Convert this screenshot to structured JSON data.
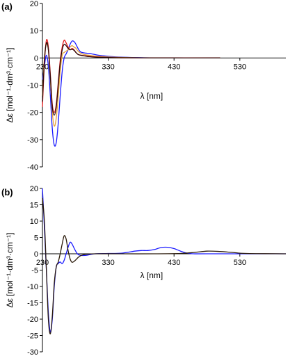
{
  "chart_data": [
    {
      "panel_label": "(a)",
      "type": "line",
      "xlabel": "λ [nm]",
      "ylabel": "Δε [mol⁻¹·dm³·cm⁻¹]",
      "xlim": [
        230,
        600
      ],
      "ylim": [
        -40,
        20
      ],
      "xticks": [
        230,
        330,
        430,
        530
      ],
      "yticks": [
        -40,
        -30,
        -20,
        -10,
        0,
        10,
        20
      ],
      "grid": false,
      "series": [
        {
          "color": "#1a1aff",
          "points": [
            [
              230,
              -8
            ],
            [
              233,
              -3
            ],
            [
              236,
              1
            ],
            [
              239,
              -3
            ],
            [
              242,
              -14
            ],
            [
              245,
              -26
            ],
            [
              248,
              -32
            ],
            [
              251,
              -31
            ],
            [
              254,
              -24
            ],
            [
              257,
              -14
            ],
            [
              260,
              -5
            ],
            [
              263,
              0
            ],
            [
              266,
              1.5
            ],
            [
              269,
              3
            ],
            [
              272,
              5
            ],
            [
              275,
              6.2
            ],
            [
              278,
              6
            ],
            [
              281,
              5
            ],
            [
              284,
              3.5
            ],
            [
              288,
              2.2
            ],
            [
              295,
              1.8
            ],
            [
              305,
              1.5
            ],
            [
              315,
              1
            ],
            [
              330,
              0.6
            ],
            [
              350,
              0.3
            ],
            [
              380,
              0.1
            ],
            [
              420,
              0
            ],
            [
              500,
              0
            ]
          ]
        },
        {
          "color": "#e8a33a",
          "points": [
            [
              230,
              -14
            ],
            [
              233,
              0
            ],
            [
              236,
              5
            ],
            [
              239,
              3
            ],
            [
              242,
              -8
            ],
            [
              245,
              -20
            ],
            [
              248,
              -25
            ],
            [
              251,
              -22
            ],
            [
              254,
              -14
            ],
            [
              257,
              -5
            ],
            [
              260,
              1
            ],
            [
              263,
              2
            ],
            [
              266,
              2.5
            ],
            [
              269,
              3
            ],
            [
              272,
              4
            ],
            [
              275,
              4.5
            ],
            [
              278,
              4
            ],
            [
              281,
              3.5
            ],
            [
              284,
              2.5
            ],
            [
              290,
              1.5
            ],
            [
              300,
              1
            ],
            [
              320,
              0.5
            ],
            [
              350,
              0.2
            ],
            [
              400,
              0
            ],
            [
              500,
              0
            ]
          ]
        },
        {
          "color": "#e31a1c",
          "points": [
            [
              230,
              -18
            ],
            [
              233,
              -2
            ],
            [
              236,
              6.5
            ],
            [
              239,
              4
            ],
            [
              242,
              -6
            ],
            [
              245,
              -17
            ],
            [
              248,
              -20
            ],
            [
              251,
              -17
            ],
            [
              254,
              -9
            ],
            [
              257,
              -1
            ],
            [
              260,
              4
            ],
            [
              263,
              6.5
            ],
            [
              266,
              5.5
            ],
            [
              269,
              4
            ],
            [
              272,
              3
            ],
            [
              275,
              3.5
            ],
            [
              278,
              3
            ],
            [
              281,
              2
            ],
            [
              285,
              1.2
            ],
            [
              295,
              0.8
            ],
            [
              310,
              0.4
            ],
            [
              340,
              0.1
            ],
            [
              400,
              0
            ],
            [
              500,
              0
            ]
          ]
        },
        {
          "color": "#2a0a0a",
          "points": [
            [
              230,
              -16
            ],
            [
              233,
              -1
            ],
            [
              236,
              5.5
            ],
            [
              239,
              3
            ],
            [
              242,
              -7
            ],
            [
              245,
              -18
            ],
            [
              248,
              -21
            ],
            [
              251,
              -18
            ],
            [
              254,
              -10
            ],
            [
              257,
              -2
            ],
            [
              260,
              3
            ],
            [
              263,
              5
            ],
            [
              266,
              4.5
            ],
            [
              269,
              3.5
            ],
            [
              272,
              3
            ],
            [
              275,
              3.2
            ],
            [
              278,
              2.8
            ],
            [
              281,
              2
            ],
            [
              285,
              1.2
            ],
            [
              295,
              0.7
            ],
            [
              310,
              0.3
            ],
            [
              340,
              0.1
            ],
            [
              400,
              0
            ],
            [
              500,
              0
            ]
          ]
        }
      ]
    },
    {
      "panel_label": "(b)",
      "type": "line",
      "xlabel": "λ [nm]",
      "ylabel": "Δε [mol⁻¹·dm³·cm⁻¹]",
      "xlim": [
        230,
        600
      ],
      "ylim": [
        -30,
        20
      ],
      "xticks": [
        230,
        330,
        430,
        530
      ],
      "yticks": [
        -30,
        -25,
        -20,
        -15,
        -10,
        -5,
        0,
        5,
        10,
        15,
        20
      ],
      "grid": false,
      "series": [
        {
          "color": "#1a1aff",
          "points": [
            [
              230,
              20
            ],
            [
              233,
              8
            ],
            [
              236,
              -5
            ],
            [
              239,
              -18
            ],
            [
              242,
              -24
            ],
            [
              245,
              -20
            ],
            [
              248,
              -10
            ],
            [
              251,
              -4
            ],
            [
              254,
              -3
            ],
            [
              257,
              -2.5
            ],
            [
              260,
              -3
            ],
            [
              263,
              -2
            ],
            [
              266,
              0
            ],
            [
              269,
              2
            ],
            [
              272,
              3.5
            ],
            [
              275,
              3
            ],
            [
              280,
              1
            ],
            [
              285,
              -0.3
            ],
            [
              295,
              -0.5
            ],
            [
              310,
              0
            ],
            [
              330,
              0.1
            ],
            [
              350,
              0.2
            ],
            [
              370,
              0.8
            ],
            [
              380,
              1
            ],
            [
              390,
              1
            ],
            [
              400,
              1.3
            ],
            [
              410,
              1.9
            ],
            [
              420,
              2
            ],
            [
              430,
              1.6
            ],
            [
              440,
              0.8
            ],
            [
              450,
              0.2
            ],
            [
              460,
              0
            ],
            [
              480,
              0
            ],
            [
              600,
              0
            ]
          ]
        },
        {
          "color": "#2a1a0a",
          "points": [
            [
              230,
              17
            ],
            [
              233,
              10
            ],
            [
              236,
              -5
            ],
            [
              239,
              -20
            ],
            [
              242,
              -24.5
            ],
            [
              245,
              -19
            ],
            [
              248,
              -9
            ],
            [
              251,
              -4
            ],
            [
              254,
              -2.5
            ],
            [
              257,
              0
            ],
            [
              260,
              3
            ],
            [
              263,
              5.5
            ],
            [
              266,
              4.5
            ],
            [
              269,
              1
            ],
            [
              272,
              -1.5
            ],
            [
              275,
              -2.6
            ],
            [
              280,
              -2
            ],
            [
              285,
              -1
            ],
            [
              292,
              -0.3
            ],
            [
              310,
              0
            ],
            [
              350,
              0
            ],
            [
              400,
              0
            ],
            [
              440,
              0.1
            ],
            [
              460,
              0.4
            ],
            [
              480,
              0.8
            ],
            [
              500,
              0.7
            ],
            [
              520,
              0.4
            ],
            [
              540,
              0.1
            ],
            [
              600,
              0
            ]
          ]
        }
      ]
    }
  ]
}
